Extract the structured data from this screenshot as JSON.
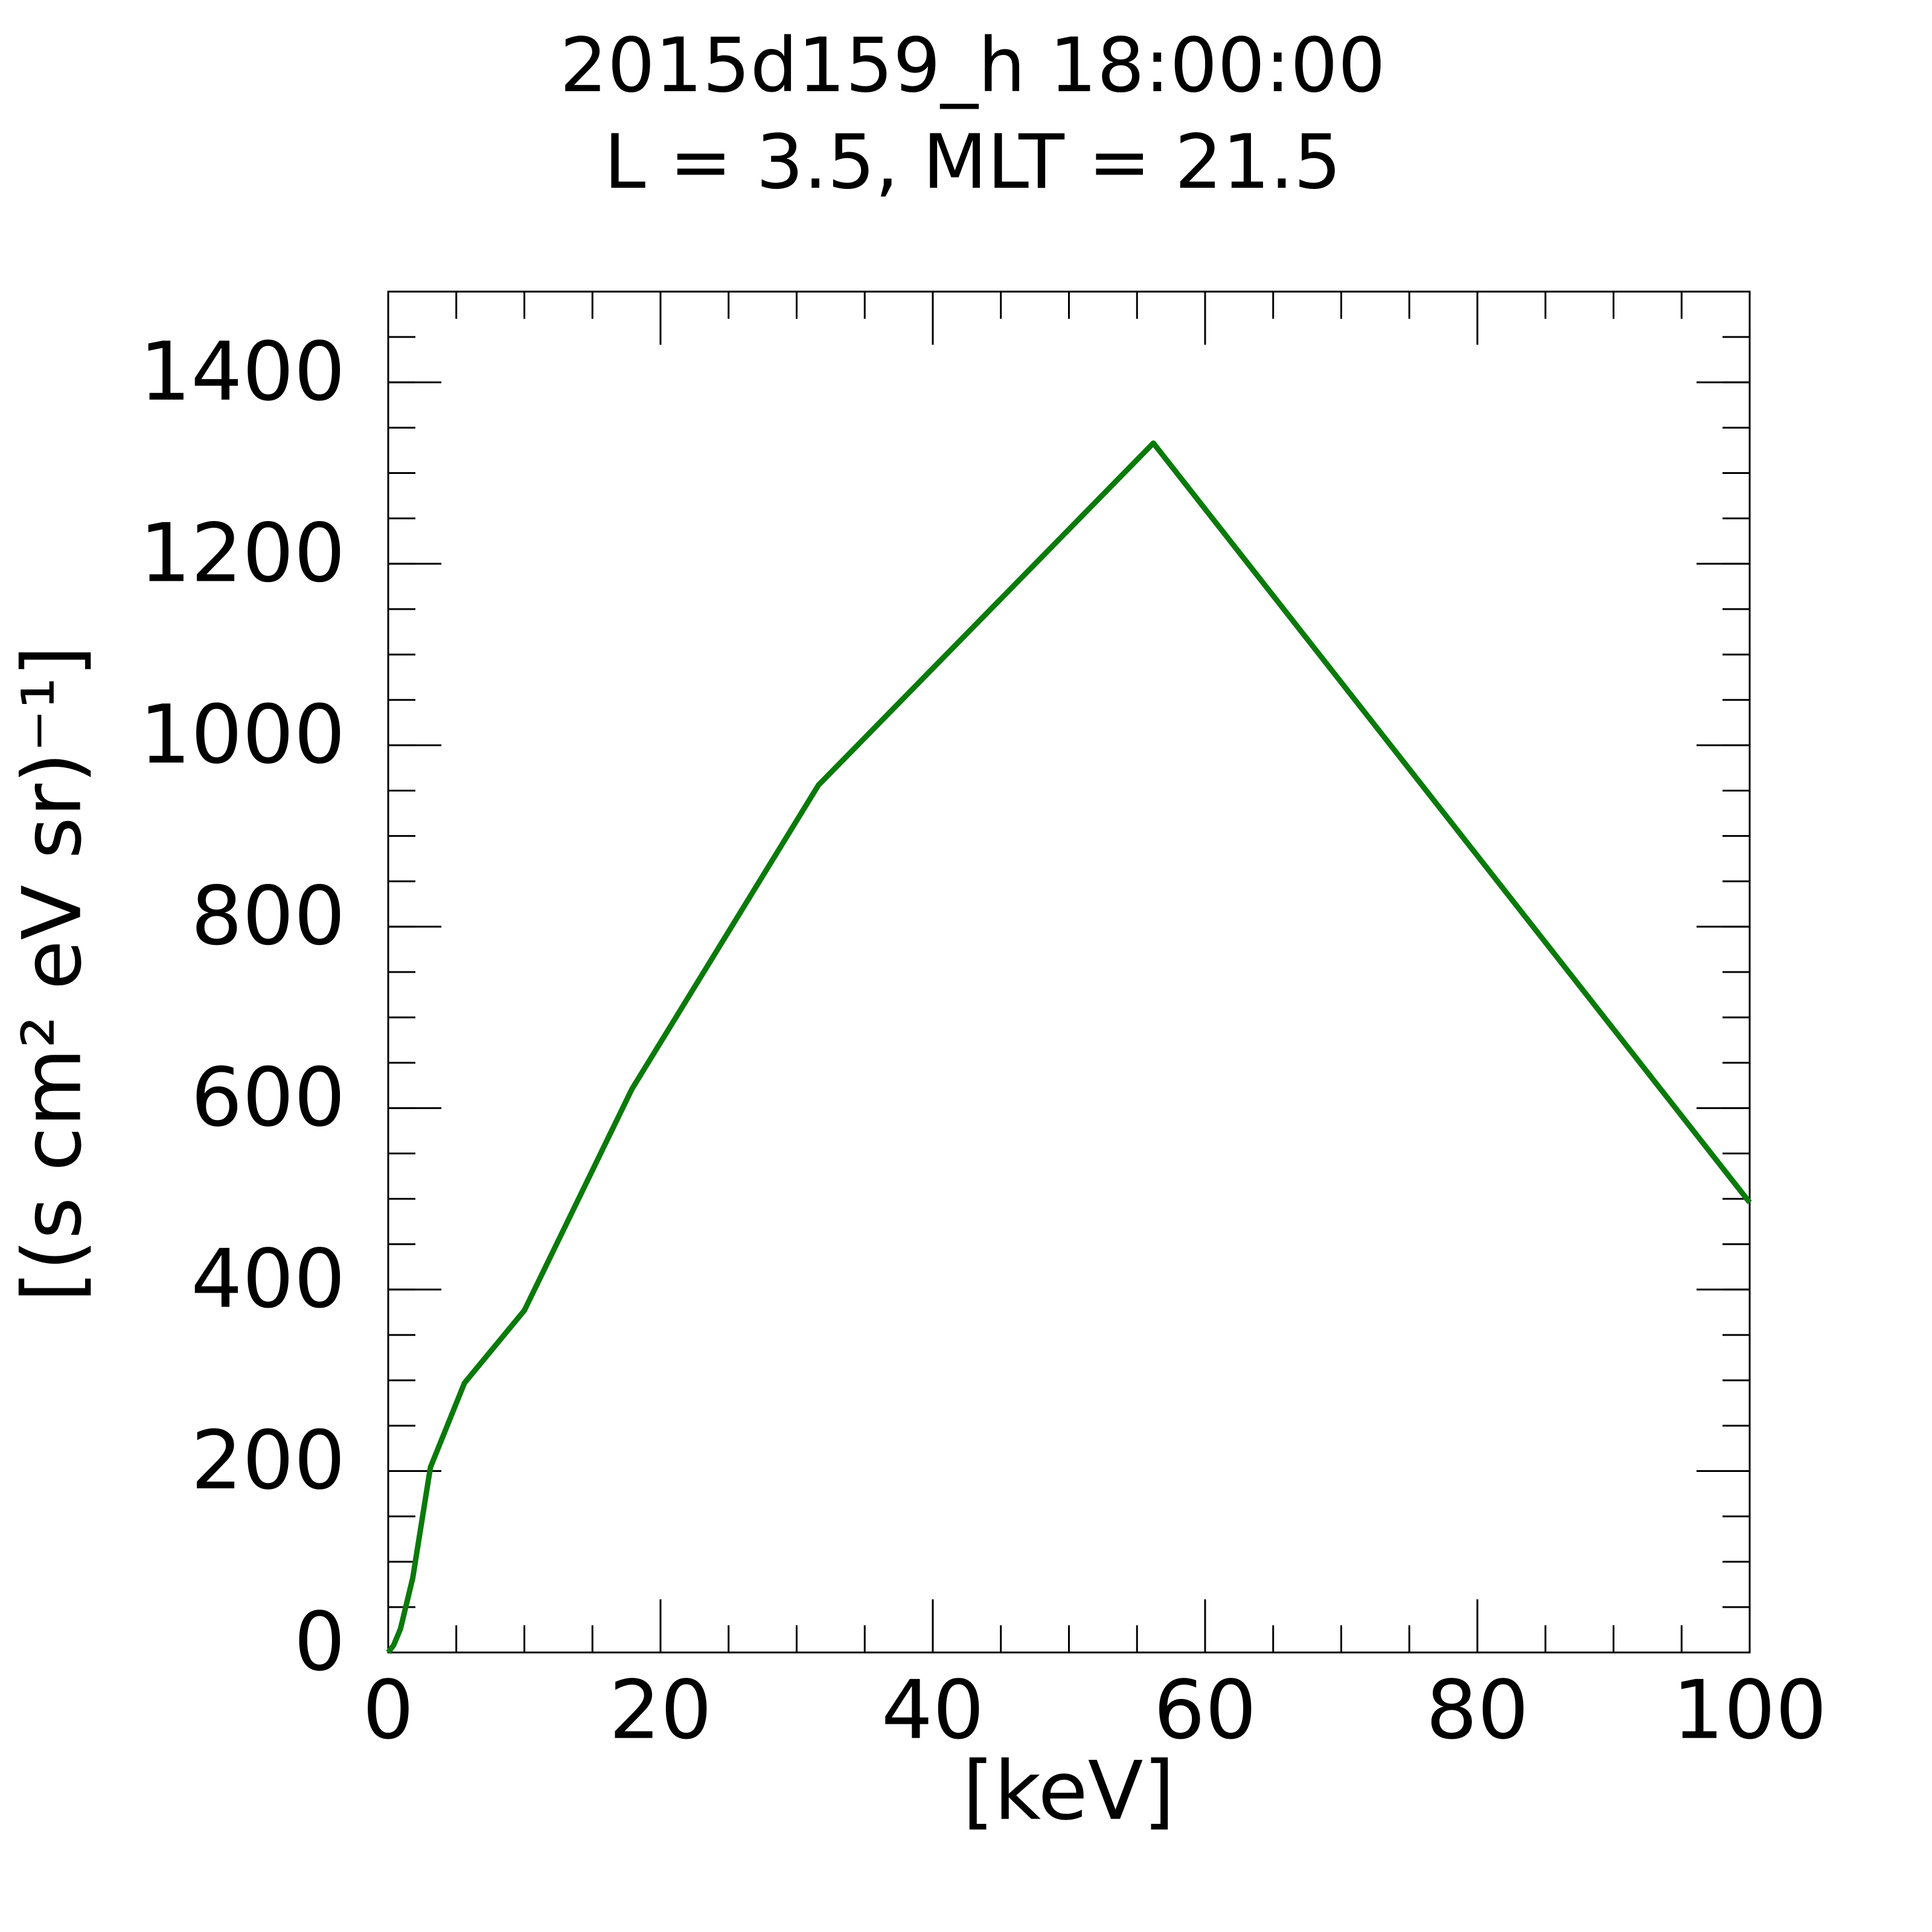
{
  "chart_data": {
    "type": "line",
    "title": "2015d159_h  18:00:00",
    "subtitle": "L = 3.5, MLT = 21.5",
    "x_label": "[keV]",
    "y_label": "[(s cm² eV sr)⁻¹]",
    "x": [
      0,
      0.4,
      0.9,
      1.8,
      3.1,
      5.6,
      10.0,
      17.9,
      31.6,
      56.2,
      100
    ],
    "series": [
      {
        "name": "flux",
        "color": "#0a7a0a",
        "values": [
          0,
          8,
          26,
          82,
          204,
          297,
          377,
          621,
          956,
          1333,
          496
        ]
      }
    ],
    "xlim": [
      0,
      100
    ],
    "xticks": [
      0,
      20,
      40,
      60,
      80,
      100
    ],
    "xminor": 5,
    "ylim": [
      0,
      1500
    ],
    "yticks": [
      0,
      200,
      400,
      600,
      800,
      1000,
      1200,
      1400
    ],
    "yminor": 50,
    "grid": false,
    "legend": false
  }
}
